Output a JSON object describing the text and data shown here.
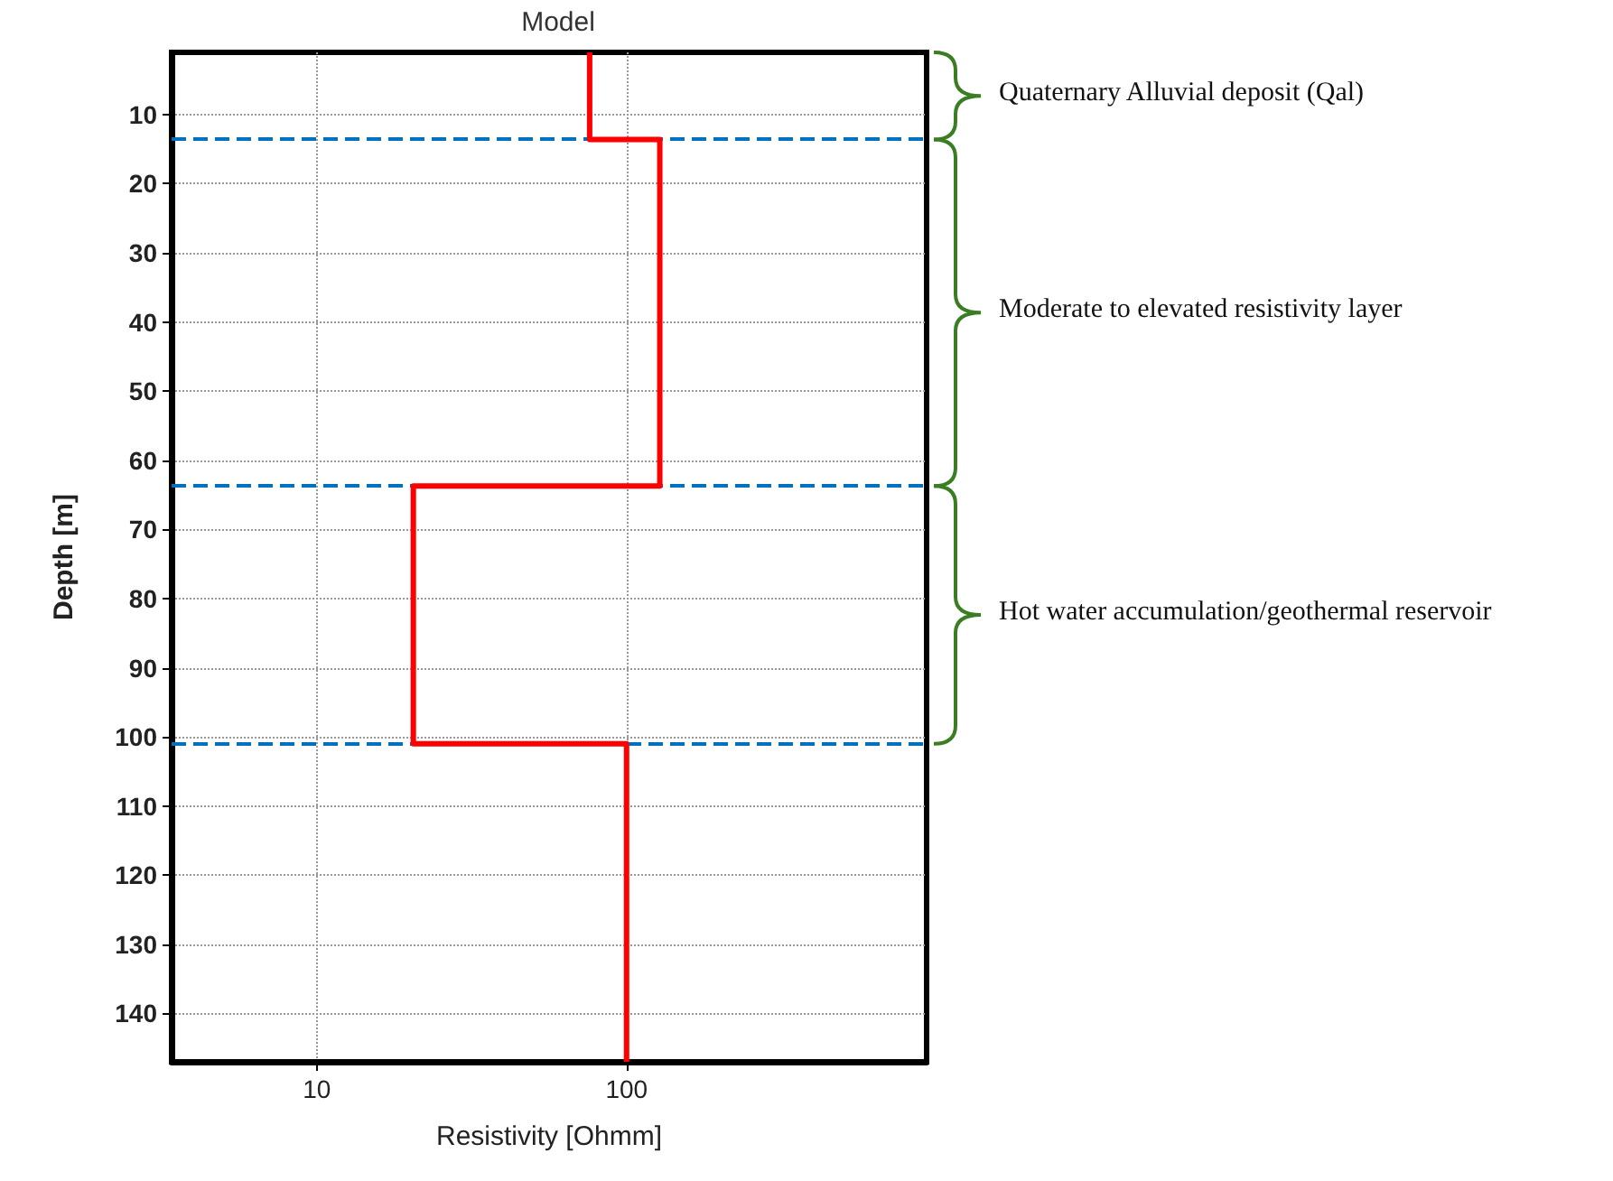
{
  "chart_data": {
    "type": "line",
    "title": "Model",
    "xlabel": "Resistivity [Ohmm]",
    "ylabel": "Depth [m]",
    "series": [
      {
        "color": "#ff0000",
        "x": [
          76,
          76,
          128,
          128,
          20.5,
          20.5,
          100,
          100
        ],
        "values": [
          1,
          13.6,
          13.6,
          63.7,
          63.7,
          101,
          101,
          147
        ]
      }
    ],
    "log": "x",
    "xlim": [
      3.4,
      930
    ],
    "xticks": [
      10,
      100
    ],
    "ylim": [
      147,
      1
    ],
    "yticks": [
      10,
      20,
      30,
      40,
      50,
      60,
      70,
      80,
      90,
      100,
      110,
      120,
      130,
      140
    ],
    "grid": true,
    "marker": "none",
    "line_style": "solid",
    "ref_lines": [
      {
        "axis": "y",
        "value": 13.6,
        "color": "#0070c0",
        "line_style": "dashed"
      },
      {
        "axis": "y",
        "value": 63.7,
        "color": "#0070c0",
        "line_style": "dashed"
      },
      {
        "axis": "y",
        "value": 101,
        "color": "#0070c0",
        "line_style": "dashed"
      }
    ],
    "annotations": [
      "Quaternary Alluvial deposit (Qal)",
      "Moderate to elevated resistivity layer",
      "Hot water accumulation/geothermal reservoir"
    ]
  }
}
